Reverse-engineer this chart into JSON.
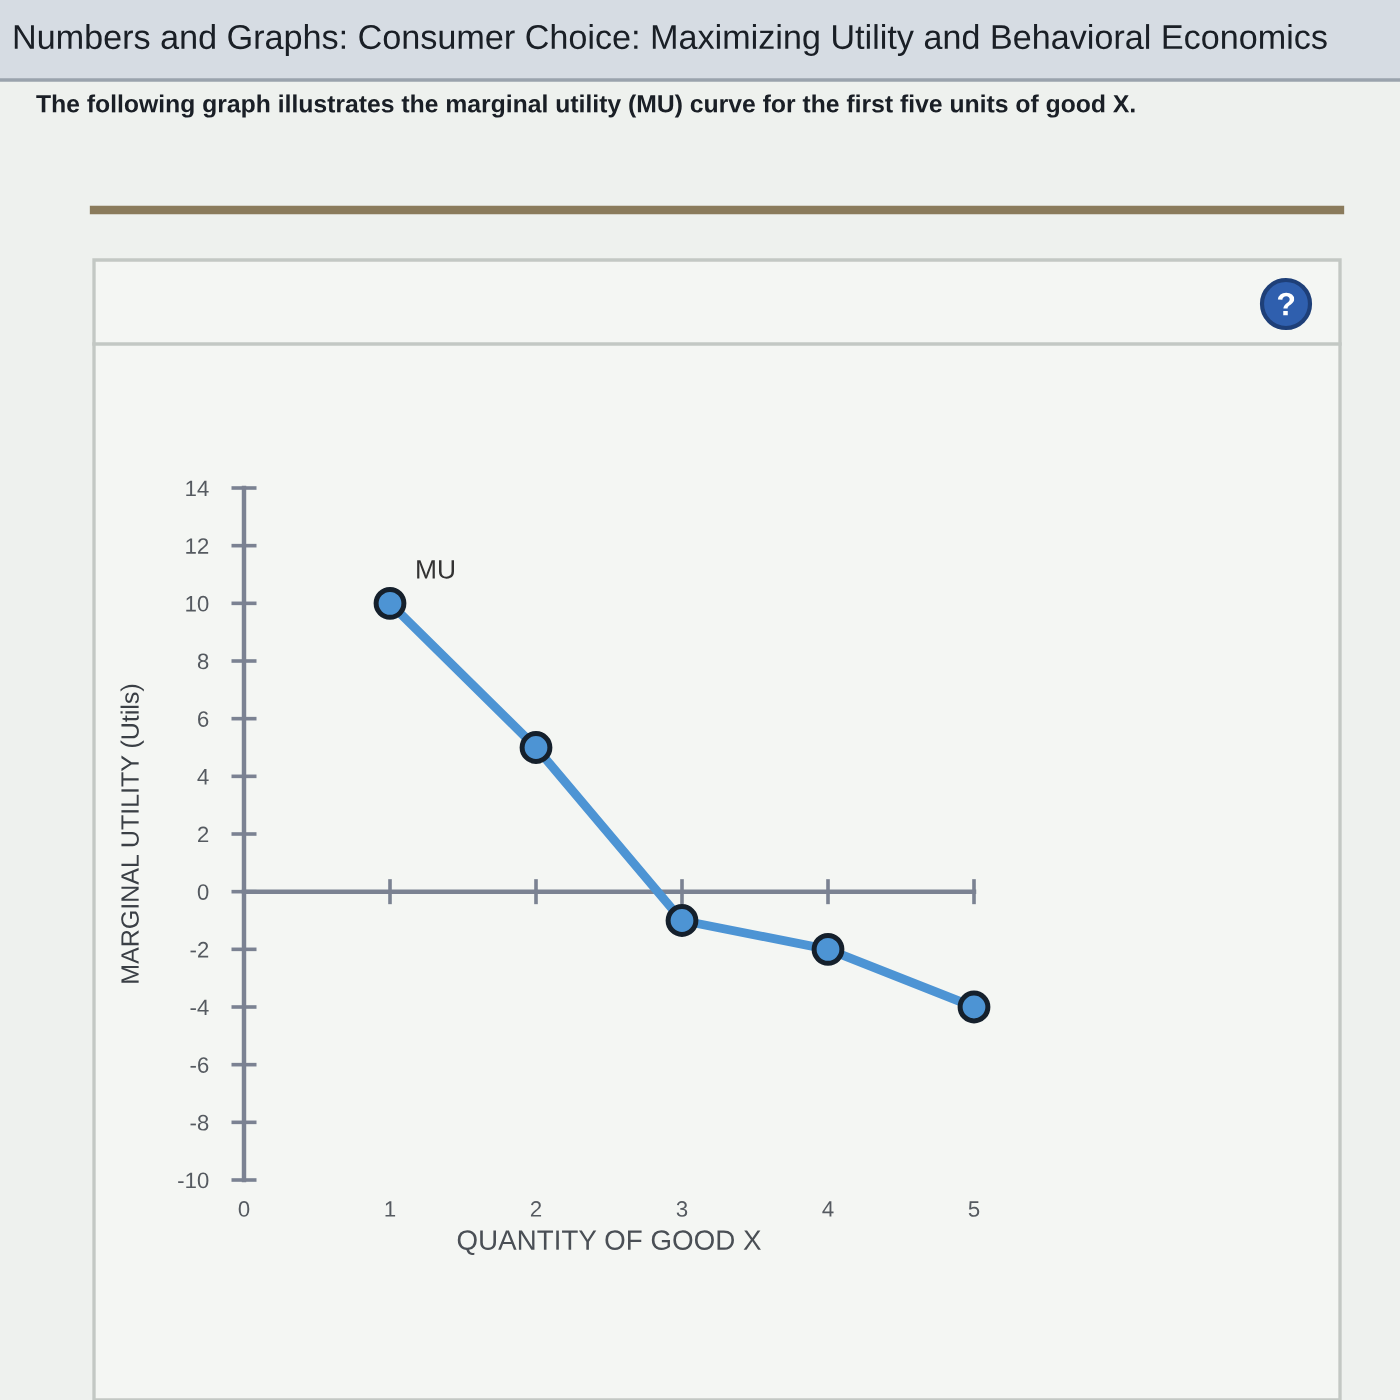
{
  "chart_data": {
    "type": "line",
    "title": "Numbers and Graphs: Consumer Choice: Maximizing Utility and Behavioral Economics",
    "subtitle": "The following graph illustrates the marginal utility (MU) curve for the first five units of good X.",
    "xlabel": "QUANTITY OF GOOD X",
    "ylabel": "MARGINAL UTILITY (Utils)",
    "x": [
      1,
      2,
      3,
      4,
      5
    ],
    "series": [
      {
        "name": "MU",
        "color": "#4d94d4",
        "values": [
          10,
          5,
          -1,
          -2,
          -4
        ]
      }
    ],
    "xlim": [
      0,
      5
    ],
    "xticks": [
      0,
      1,
      2,
      3,
      4,
      5
    ],
    "ylim": [
      -10,
      14
    ],
    "yticks": [
      -10,
      -8,
      -6,
      -4,
      -2,
      0,
      2,
      4,
      6,
      8,
      10,
      12,
      14
    ],
    "marker": "circle",
    "line_style": "solid"
  }
}
